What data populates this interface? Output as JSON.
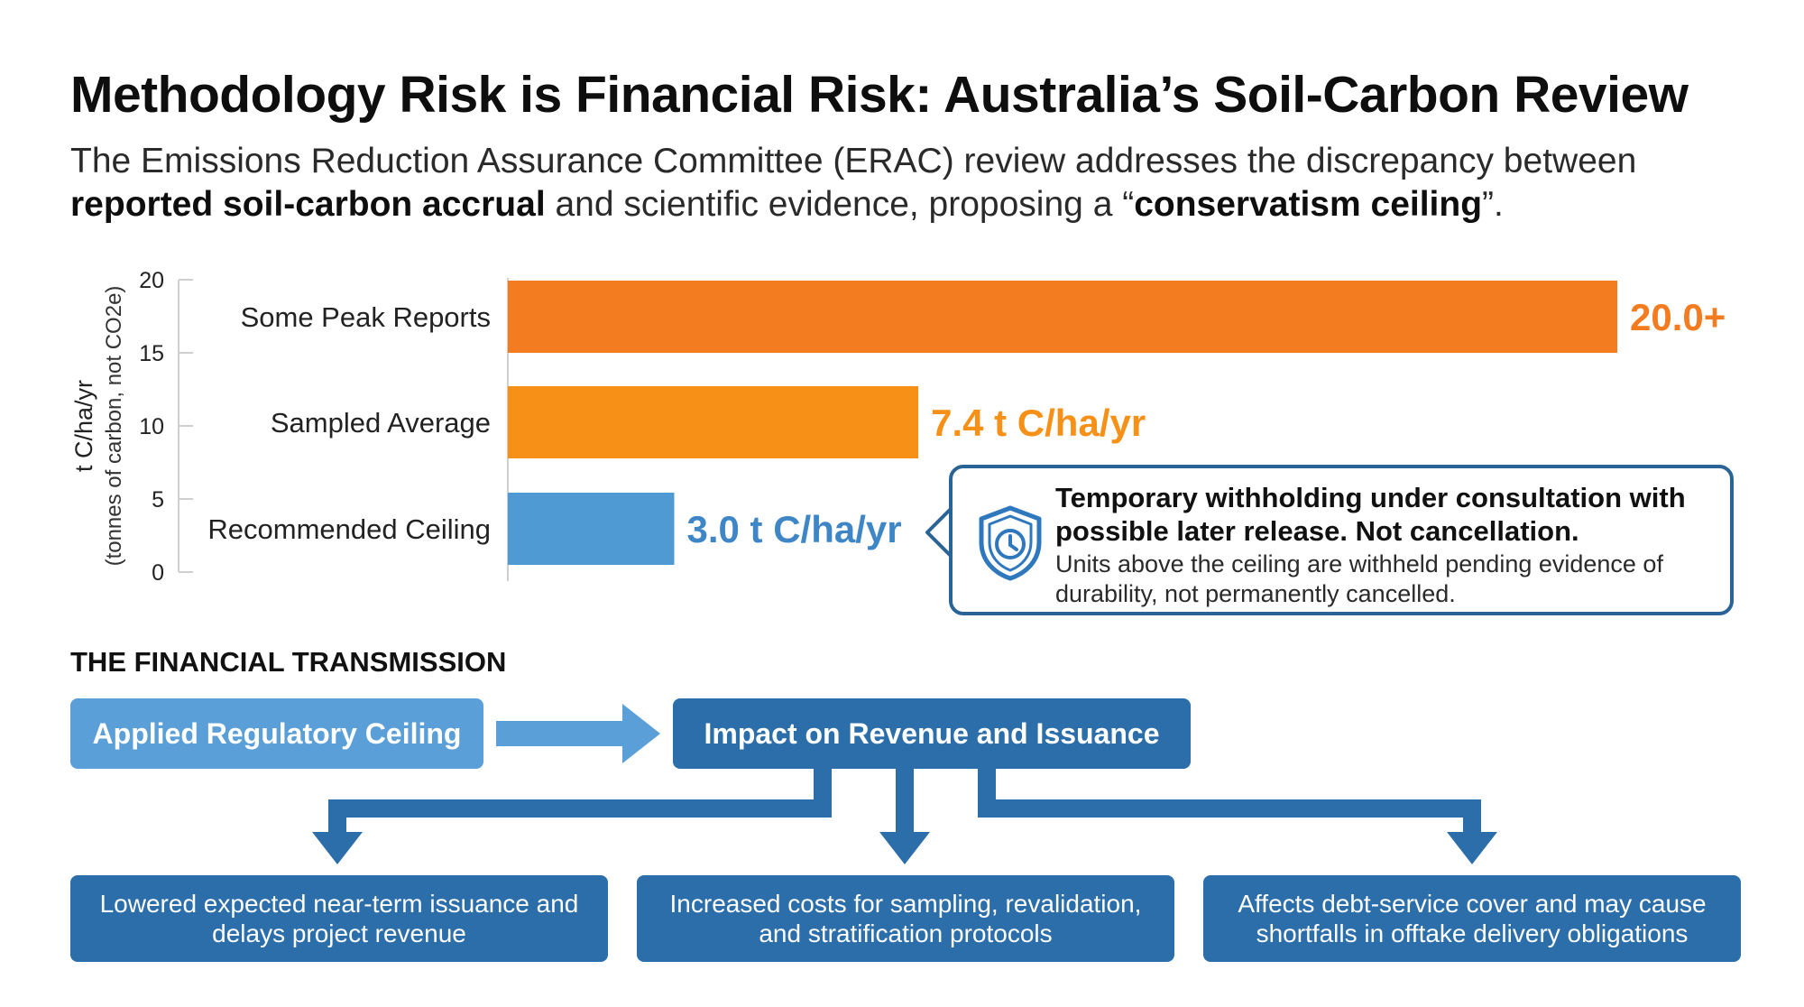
{
  "title": "Methodology Risk is Financial Risk: Australia’s Soil-Carbon Review",
  "subtitle": {
    "part1": "The Emissions Reduction Assurance Committee (ERAC) review addresses the discrepancy between ",
    "bold1": "reported soil-carbon accrual",
    "part2": " and scientific evidence, proposing a “",
    "bold2": "conservatism ceiling",
    "part3": "”."
  },
  "chart_data": {
    "type": "bar",
    "orientation": "horizontal",
    "categories": [
      "Some Peak Reports",
      "Sampled Average",
      "Recommended Ceiling"
    ],
    "values": [
      20.0,
      7.4,
      3.0
    ],
    "value_labels": [
      "20.0+",
      "7.4 t C/ha/yr",
      "3.0 t C/ha/yr"
    ],
    "colors": [
      "#f47c20",
      "#f79016",
      "#4f9ad3"
    ],
    "label_colors": [
      "#f47c20",
      "#f79016",
      "#3f86c7"
    ],
    "ylabel": "t C/ha/yr",
    "ylabel_sub": "(tonnes of carbon, not CO2e)",
    "yticks": [
      0,
      5,
      10,
      15,
      20
    ],
    "ylim": [
      0,
      20
    ],
    "grid": false
  },
  "callout": {
    "icon": "shield-clock-icon",
    "heading": "Temporary withholding under consultation with possible later release. Not cancellation.",
    "body": "Units above the ceiling are withheld pending evidence of durability, not permanently cancelled."
  },
  "flow": {
    "section_label": "THE FINANCIAL TRANSMISSION",
    "source": "Applied Regulatory Ceiling",
    "impact": "Impact on Revenue and Issuance",
    "outcomes": [
      "Lowered expected near-term issuance and delays project revenue",
      "Increased costs for sampling, revalidation, and stratification protocols",
      "Affects debt-service cover and may cause shortfalls in offtake delivery obligations"
    ]
  },
  "colors": {
    "arrow_light": "#5a9fd8",
    "arrow_dark": "#2c6ea9",
    "callout_border": "#2a6496"
  }
}
